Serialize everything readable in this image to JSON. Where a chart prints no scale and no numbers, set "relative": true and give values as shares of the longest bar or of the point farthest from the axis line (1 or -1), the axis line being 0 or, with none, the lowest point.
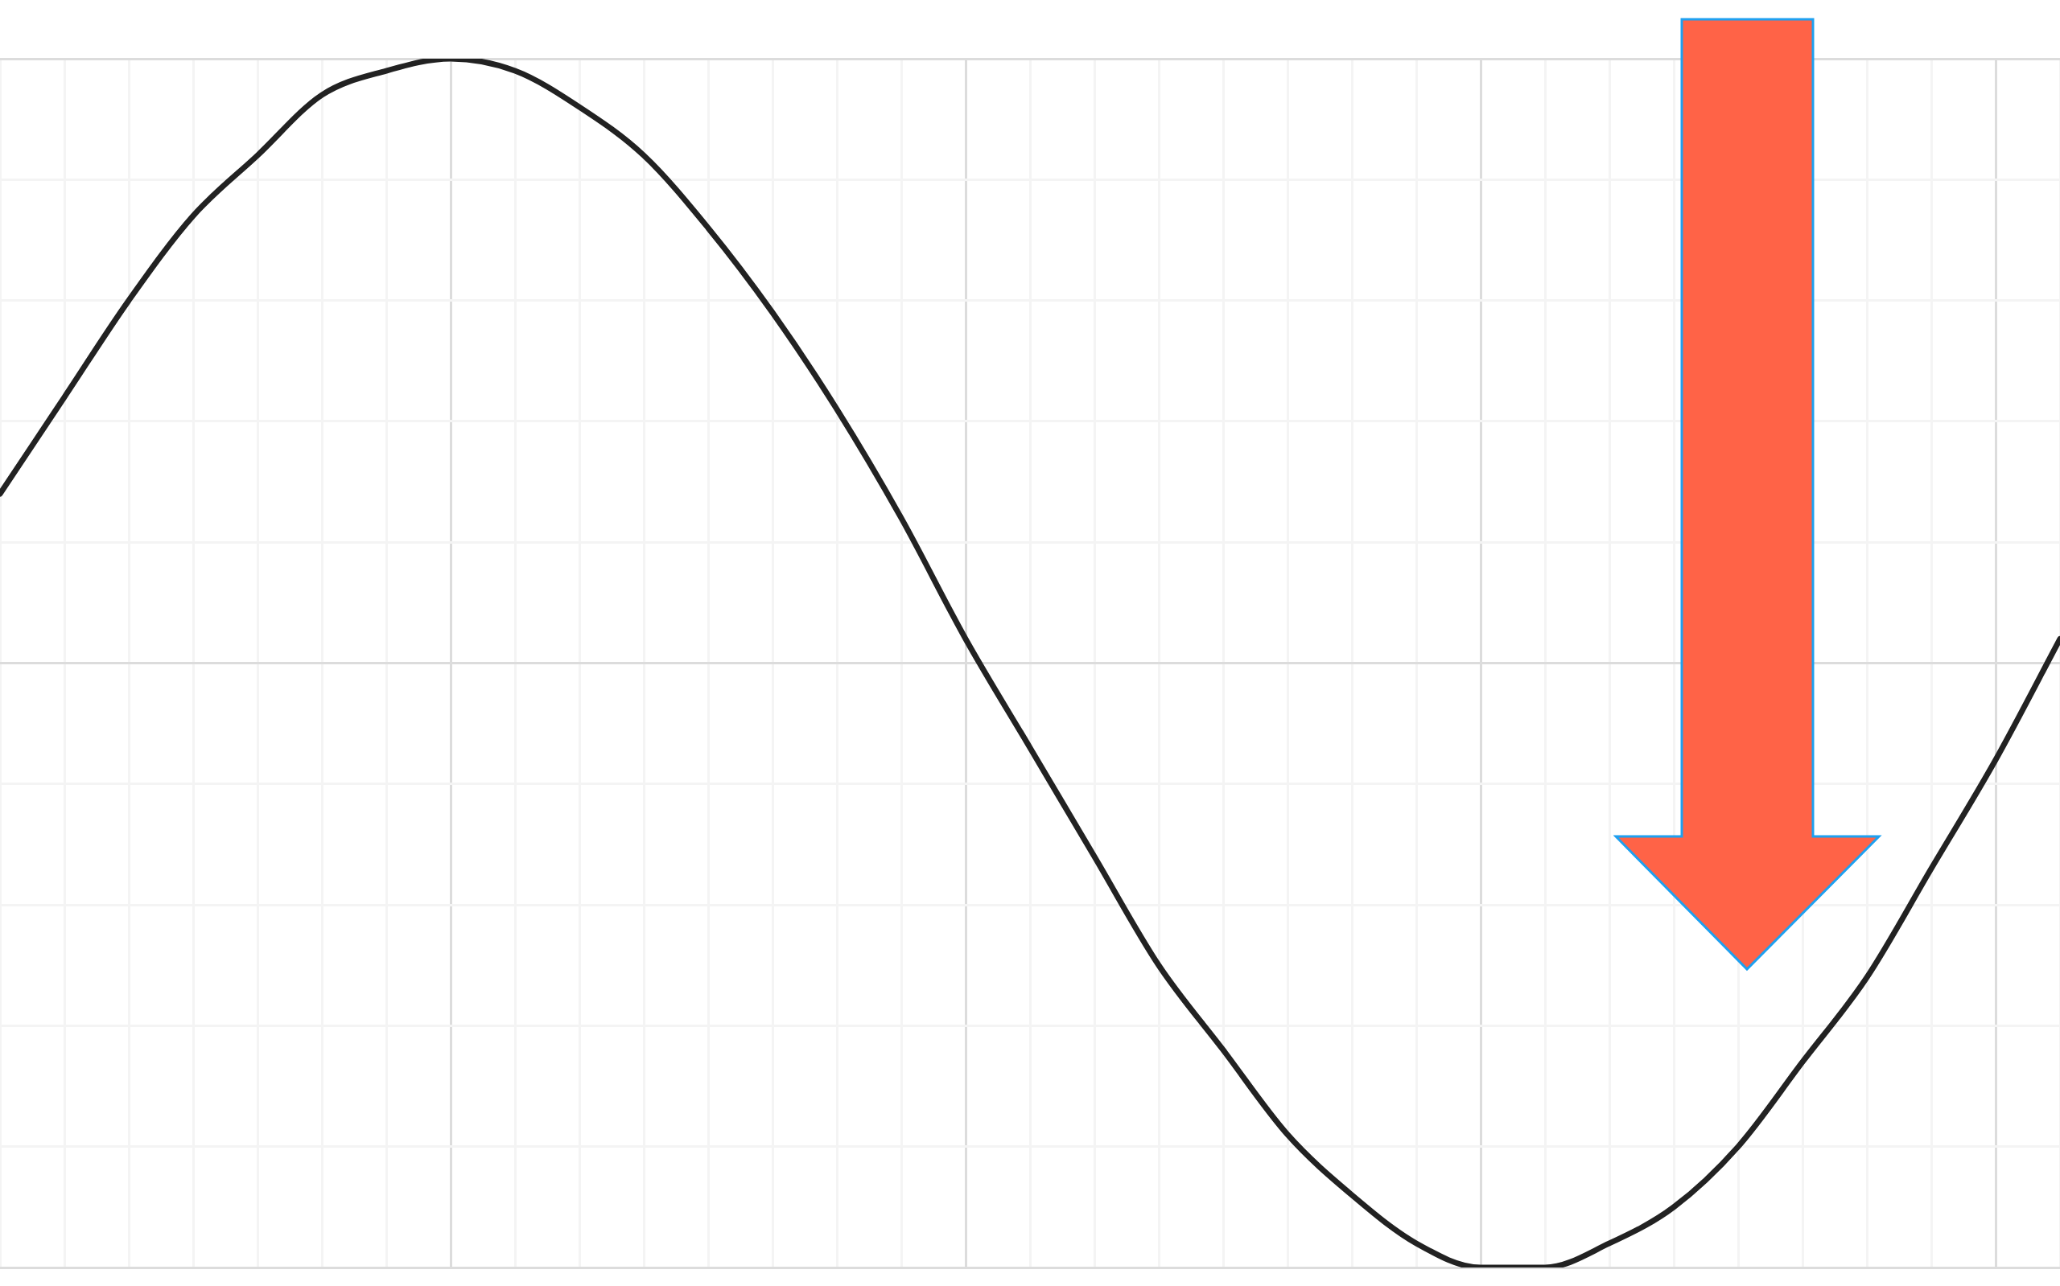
{
  "chart_data": {
    "type": "line",
    "relative": true,
    "grid": true,
    "color": "#222222",
    "categories": [
      null,
      null,
      null,
      null,
      null,
      null,
      null,
      null,
      null,
      null,
      null,
      null,
      null,
      null,
      null,
      null,
      null,
      null,
      null,
      null,
      null,
      null,
      null,
      null,
      null,
      null,
      null,
      null,
      null,
      null,
      null,
      null,
      null
    ],
    "values": [
      0.64,
      0.72,
      0.8,
      0.87,
      0.92,
      0.97,
      0.99,
      1,
      0.99,
      0.96,
      0.92,
      0.86,
      0.79,
      0.71,
      0.62,
      0.52,
      0.43,
      0.34,
      0.25,
      0.18,
      0.11,
      0.06,
      0.02,
      0,
      0,
      0.02,
      0.05,
      0.1,
      0.17,
      0.24,
      0.33,
      0.42,
      0.52
    ]
  }
}
